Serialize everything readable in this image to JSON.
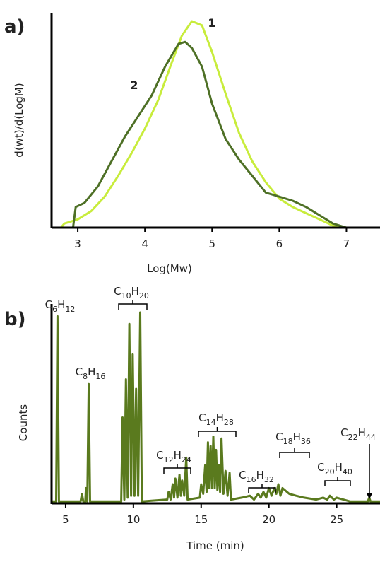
{
  "chart_data": [
    {
      "type": "line",
      "panel": "a)",
      "xlabel": "Log(Mw)",
      "ylabel": "d(wt)/d(LogM)",
      "xlim": [
        2.61,
        7.5
      ],
      "ylim": [
        0,
        1
      ],
      "xticks": [
        3,
        4,
        5,
        6,
        7
      ],
      "series": [
        {
          "name": "1",
          "color": "#c8ec3c",
          "x": [
            2.61,
            2.75,
            2.8,
            3.0,
            3.2,
            3.4,
            3.6,
            3.8,
            4.0,
            4.2,
            4.4,
            4.55,
            4.7,
            4.85,
            5.0,
            5.2,
            5.4,
            5.6,
            5.8,
            6.0,
            6.2,
            6.4,
            6.6,
            6.8,
            7.0,
            7.5
          ],
          "values": [
            0,
            0,
            0.02,
            0.04,
            0.08,
            0.15,
            0.25,
            0.36,
            0.48,
            0.62,
            0.8,
            0.93,
            1.0,
            0.98,
            0.85,
            0.65,
            0.46,
            0.32,
            0.22,
            0.14,
            0.1,
            0.07,
            0.04,
            0.01,
            0,
            0
          ]
        },
        {
          "name": "2",
          "color": "#4e7026",
          "x": [
            2.61,
            2.93,
            2.97,
            3.1,
            3.3,
            3.5,
            3.7,
            3.9,
            4.1,
            4.3,
            4.5,
            4.6,
            4.7,
            4.85,
            5.0,
            5.2,
            5.4,
            5.6,
            5.8,
            6.0,
            6.2,
            6.4,
            6.6,
            6.8,
            7.0
          ],
          "values": [
            0,
            0,
            0.1,
            0.12,
            0.2,
            0.32,
            0.44,
            0.54,
            0.64,
            0.78,
            0.89,
            0.9,
            0.87,
            0.78,
            0.6,
            0.43,
            0.33,
            0.25,
            0.17,
            0.15,
            0.13,
            0.1,
            0.06,
            0.02,
            0
          ]
        }
      ]
    },
    {
      "type": "line",
      "panel": "b)",
      "xlabel": "Time (min)",
      "ylabel": "Counts",
      "xlim": [
        3.96,
        28.2
      ],
      "ylim": [
        0,
        1
      ],
      "xticks": [
        5,
        10,
        15,
        20,
        25
      ],
      "annotations": [
        "C6H12",
        "C8H16",
        "C10H20",
        "C12H24",
        "C14H28",
        "C16H32",
        "C18H36",
        "C20H40",
        "C22H44"
      ],
      "series": [
        {
          "name": "Counts",
          "color": "#5a7a1e",
          "x": [
            3.96,
            4.3,
            4.4,
            4.5,
            6.1,
            6.2,
            6.3,
            6.45,
            6.5,
            6.6,
            6.7,
            6.8,
            9.1,
            9.2,
            9.33,
            9.45,
            9.58,
            9.7,
            9.83,
            9.95,
            10.08,
            10.2,
            10.35,
            10.5,
            10.62,
            12.5,
            12.6,
            12.75,
            12.9,
            13.0,
            13.1,
            13.25,
            13.4,
            13.5,
            13.6,
            13.75,
            13.9,
            14.0,
            14.9,
            15.0,
            15.15,
            15.3,
            15.4,
            15.5,
            15.6,
            15.7,
            15.8,
            15.9,
            16.0,
            16.1,
            16.2,
            16.3,
            16.4,
            16.5,
            16.65,
            16.8,
            16.95,
            17.1,
            17.2,
            18.0,
            18.6,
            18.9,
            19.2,
            19.4,
            19.6,
            19.8,
            20.0,
            20.2,
            20.4,
            20.55,
            20.7,
            20.85,
            21.0,
            21.5,
            22.0,
            22.6,
            23.5,
            24.0,
            24.3,
            24.5,
            24.8,
            25.0,
            26.0,
            27.3,
            27.4,
            27.5,
            28.2
          ],
          "values": [
            0.01,
            0.01,
            0.98,
            0.01,
            0.01,
            0.05,
            0.01,
            0.01,
            0.08,
            0.01,
            0.625,
            0.01,
            0.01,
            0.45,
            0.02,
            0.65,
            0.03,
            0.94,
            0.04,
            0.78,
            0.04,
            0.6,
            0.04,
            1.0,
            0.01,
            0.02,
            0.06,
            0.02,
            0.1,
            0.03,
            0.13,
            0.03,
            0.15,
            0.04,
            0.12,
            0.04,
            0.24,
            0.02,
            0.03,
            0.1,
            0.05,
            0.2,
            0.06,
            0.32,
            0.08,
            0.3,
            0.08,
            0.35,
            0.08,
            0.28,
            0.07,
            0.2,
            0.06,
            0.34,
            0.05,
            0.17,
            0.04,
            0.16,
            0.02,
            0.03,
            0.04,
            0.02,
            0.05,
            0.03,
            0.06,
            0.03,
            0.08,
            0.04,
            0.08,
            0.05,
            0.1,
            0.04,
            0.08,
            0.05,
            0.04,
            0.03,
            0.02,
            0.03,
            0.02,
            0.04,
            0.02,
            0.03,
            0.01,
            0.01,
            0.03,
            0.01,
            0.01
          ]
        }
      ]
    }
  ]
}
